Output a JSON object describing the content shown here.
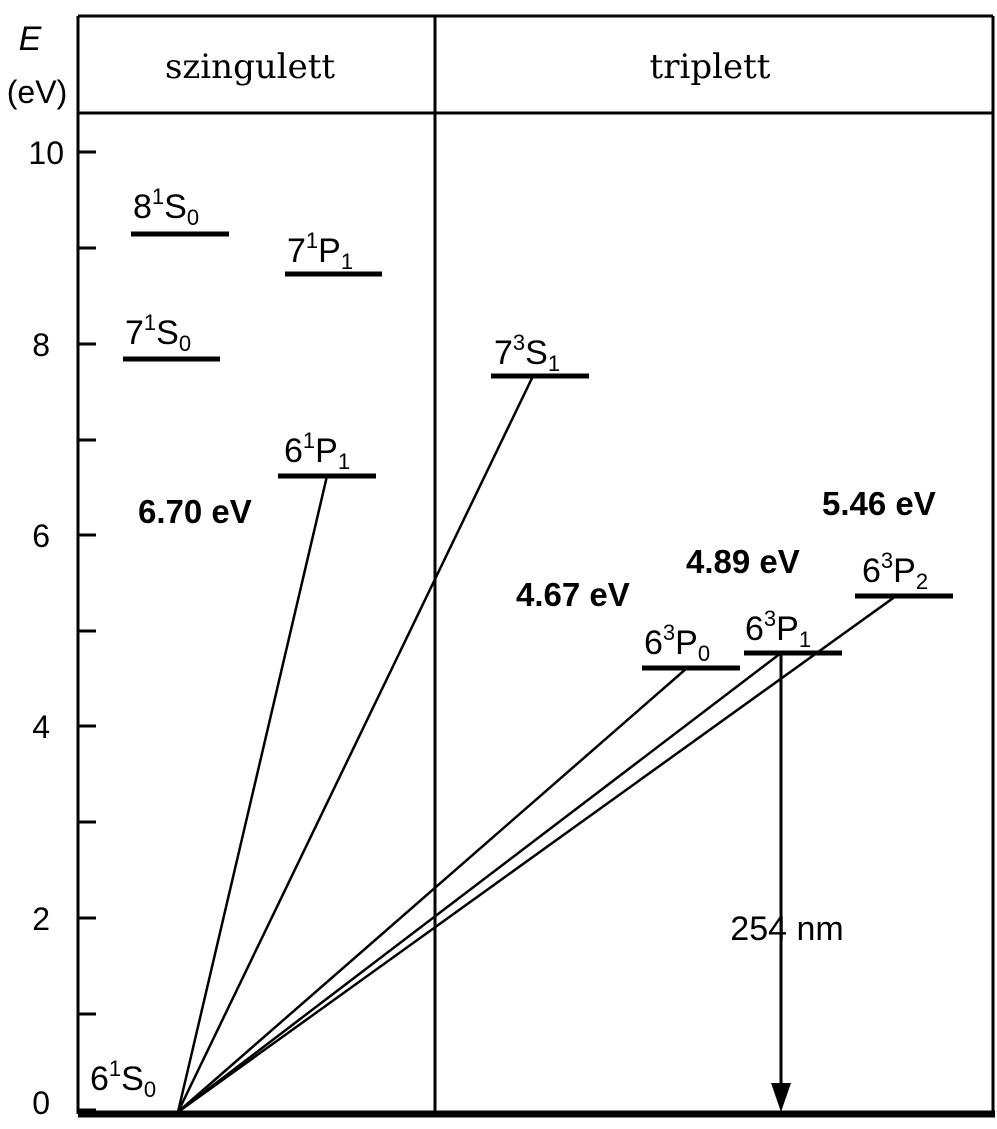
{
  "axis": {
    "symbol": "E",
    "unit": "(eV)",
    "ticks": [
      "0",
      "2",
      "4",
      "6",
      "8",
      "10"
    ]
  },
  "columns": {
    "left": "szingulett",
    "right": "triplett"
  },
  "levels": {
    "ground": {
      "n": "6",
      "mult": "1",
      "letter": "S",
      "j": "0"
    },
    "s81": {
      "n": "8",
      "mult": "1",
      "letter": "S",
      "j": "0"
    },
    "s71": {
      "n": "7",
      "mult": "1",
      "letter": "S",
      "j": "0"
    },
    "p71": {
      "n": "7",
      "mult": "1",
      "letter": "P",
      "j": "1"
    },
    "p61": {
      "n": "6",
      "mult": "1",
      "letter": "P",
      "j": "1"
    },
    "s73": {
      "n": "7",
      "mult": "3",
      "letter": "S",
      "j": "1"
    },
    "p630": {
      "n": "6",
      "mult": "3",
      "letter": "P",
      "j": "0"
    },
    "p631": {
      "n": "6",
      "mult": "3",
      "letter": "P",
      "j": "1"
    },
    "p632": {
      "n": "6",
      "mult": "3",
      "letter": "P",
      "j": "2"
    }
  },
  "energies": {
    "e670": "6.70 eV",
    "e467": "4.67 eV",
    "e489": "4.89 eV",
    "e546": "5.46 eV"
  },
  "emission": {
    "label": "254 nm"
  }
}
